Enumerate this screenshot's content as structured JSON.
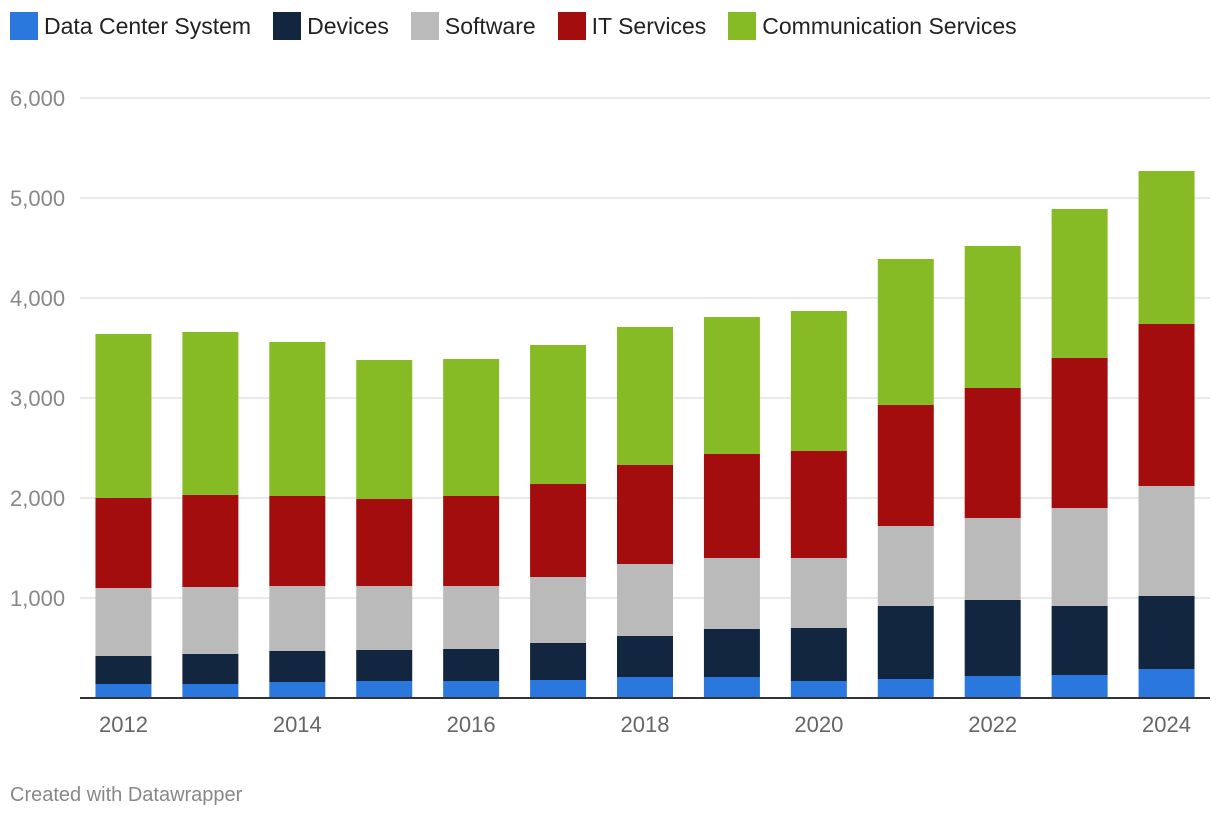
{
  "chart_data": {
    "type": "bar",
    "stacked": true,
    "categories": [
      "2012",
      "2013",
      "2014",
      "2015",
      "2016",
      "2017",
      "2018",
      "2019",
      "2020",
      "2021",
      "2022",
      "2023",
      "2024"
    ],
    "x_tick_labels": [
      "2012",
      "2014",
      "2016",
      "2018",
      "2020",
      "2022",
      "2024"
    ],
    "y_ticks": [
      "1,000",
      "2,000",
      "3,000",
      "4,000",
      "5,000",
      "6,000"
    ],
    "ylim": [
      0,
      6000
    ],
    "grid": true,
    "legend_position": "top-left",
    "series": [
      {
        "name": "Data Center System",
        "color": "#2a78de",
        "values": [
          140,
          140,
          160,
          170,
          170,
          180,
          210,
          210,
          170,
          190,
          220,
          230,
          290
        ]
      },
      {
        "name": "Devices",
        "color": "#12263f",
        "values": [
          280,
          300,
          310,
          310,
          320,
          370,
          410,
          480,
          530,
          730,
          760,
          690,
          730
        ]
      },
      {
        "name": "Software",
        "color": "#bababa",
        "values": [
          680,
          670,
          650,
          640,
          630,
          660,
          720,
          710,
          700,
          800,
          820,
          980,
          1100
        ]
      },
      {
        "name": "IT Services",
        "color": "#a30d0d",
        "values": [
          900,
          920,
          900,
          870,
          900,
          930,
          990,
          1040,
          1070,
          1210,
          1300,
          1500,
          1620
        ]
      },
      {
        "name": "Communication Services",
        "color": "#86bb25",
        "values": [
          1640,
          1630,
          1540,
          1390,
          1370,
          1390,
          1380,
          1370,
          1400,
          1460,
          1420,
          1490,
          1530
        ]
      }
    ]
  },
  "footer": {
    "credit": "Created with Datawrapper"
  }
}
